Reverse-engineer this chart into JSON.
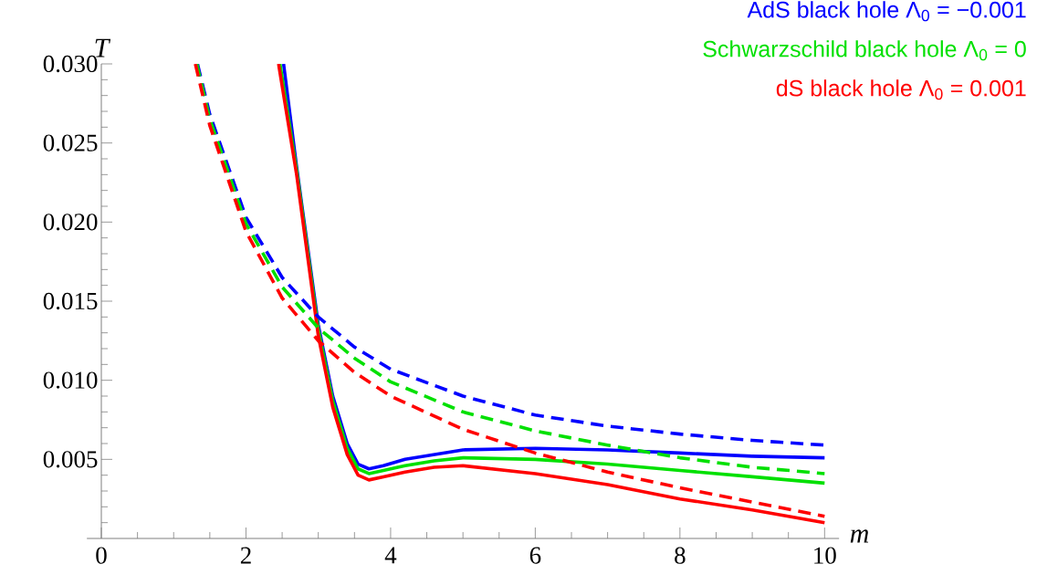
{
  "chart_data": {
    "type": "line",
    "xlabel": "m",
    "ylabel": "T",
    "xlim": [
      -0.2,
      10.2
    ],
    "ylim": [
      0,
      0.03
    ],
    "xticks": [
      0,
      {
        "value": 0.5,
        "label": null
      },
      {
        "value": 1,
        "label": null
      },
      {
        "value": 1.5,
        "label": null
      },
      2,
      {
        "value": 2.5,
        "label": null
      },
      {
        "value": 3,
        "label": null
      },
      {
        "value": 3.5,
        "label": null
      },
      4,
      {
        "value": 4.5,
        "label": null
      },
      {
        "value": 5,
        "label": null
      },
      {
        "value": 5.5,
        "label": null
      },
      6,
      {
        "value": 6.5,
        "label": null
      },
      {
        "value": 7,
        "label": null
      },
      {
        "value": 7.5,
        "label": null
      },
      8,
      {
        "value": 8.5,
        "label": null
      },
      {
        "value": 9,
        "label": null
      },
      {
        "value": 9.5,
        "label": null
      },
      10
    ],
    "yticks": [
      {
        "value": 0.001,
        "label": null
      },
      {
        "value": 0.002,
        "label": null
      },
      {
        "value": 0.003,
        "label": null
      },
      {
        "value": 0.004,
        "label": null
      },
      0.005,
      {
        "value": 0.006,
        "label": null
      },
      {
        "value": 0.007,
        "label": null
      },
      {
        "value": 0.008,
        "label": null
      },
      {
        "value": 0.009,
        "label": null
      },
      {
        "value": 0.01,
        "label": "0.010"
      },
      {
        "value": 0.011,
        "label": null
      },
      {
        "value": 0.012,
        "label": null
      },
      {
        "value": 0.013,
        "label": null
      },
      {
        "value": 0.014,
        "label": null
      },
      0.015,
      {
        "value": 0.016,
        "label": null
      },
      {
        "value": 0.017,
        "label": null
      },
      {
        "value": 0.018,
        "label": null
      },
      {
        "value": 0.019,
        "label": null
      },
      {
        "value": 0.02,
        "label": "0.020"
      },
      {
        "value": 0.021,
        "label": null
      },
      {
        "value": 0.022,
        "label": null
      },
      {
        "value": 0.023,
        "label": null
      },
      {
        "value": 0.024,
        "label": null
      },
      0.025,
      {
        "value": 0.026,
        "label": null
      },
      {
        "value": 0.027,
        "label": null
      },
      {
        "value": 0.028,
        "label": null
      },
      {
        "value": 0.029,
        "label": null
      },
      {
        "value": 0.03,
        "label": "0.030"
      }
    ],
    "legend": "top right",
    "grid": false,
    "series": [
      {
        "name": "AdS black hole Λ$_{0}$ = −0.001",
        "color": "#0000ff",
        "line_style": "solid",
        "x": [
          2.52,
          2.7,
          3.0,
          3.2,
          3.4,
          3.55,
          3.7,
          3.9,
          4.2,
          4.6,
          5,
          6,
          7,
          8,
          9,
          10
        ],
        "values": [
          0.03,
          0.0235,
          0.0135,
          0.009,
          0.006,
          0.0047,
          0.0044,
          0.0046,
          0.005,
          0.0053,
          0.0056,
          0.0057,
          0.0056,
          0.0054,
          0.0052,
          0.0051
        ]
      },
      {
        "name": "Schwarzschild black hole Λ$_{0}$ = 0",
        "color": "#00e000",
        "line_style": "solid",
        "x": [
          2.47,
          2.7,
          3.0,
          3.2,
          3.4,
          3.55,
          3.7,
          3.9,
          4.2,
          4.6,
          5,
          6,
          7,
          8,
          9,
          10
        ],
        "values": [
          0.03,
          0.0233,
          0.0132,
          0.0087,
          0.0057,
          0.0044,
          0.0041,
          0.0043,
          0.0046,
          0.0049,
          0.0051,
          0.005,
          0.0047,
          0.0043,
          0.0039,
          0.0035
        ]
      },
      {
        "name": "dS black hole Λ$_{0}$ = 0.001",
        "color": "#ff0000",
        "line_style": "solid",
        "x": [
          2.45,
          2.7,
          3.0,
          3.2,
          3.4,
          3.55,
          3.7,
          3.9,
          4.2,
          4.6,
          5,
          6,
          7,
          8,
          9,
          10
        ],
        "values": [
          0.03,
          0.023,
          0.0128,
          0.0083,
          0.0053,
          0.004,
          0.0037,
          0.0039,
          0.0042,
          0.0045,
          0.0046,
          0.0041,
          0.0034,
          0.0025,
          0.0018,
          0.001
        ]
      },
      {
        "color": "#0000ff",
        "line_style": "dashed",
        "x": [
          1.33,
          1.5,
          2,
          2.5,
          3,
          3.5,
          4,
          5,
          6,
          7,
          8,
          9,
          10
        ],
        "values": [
          0.03,
          0.0268,
          0.0203,
          0.0165,
          0.014,
          0.0121,
          0.0107,
          0.009,
          0.0078,
          0.0071,
          0.0066,
          0.0062,
          0.0059
        ]
      },
      {
        "color": "#00e000",
        "line_style": "dashed",
        "x": [
          1.32,
          1.5,
          2,
          2.5,
          3,
          3.5,
          4,
          5,
          6,
          7,
          8,
          9,
          10
        ],
        "values": [
          0.03,
          0.0265,
          0.0199,
          0.0159,
          0.0133,
          0.0114,
          0.0099,
          0.008,
          0.0068,
          0.0059,
          0.0051,
          0.0045,
          0.0041
        ]
      },
      {
        "color": "#ff0000",
        "line_style": "dashed",
        "x": [
          1.3,
          1.5,
          2,
          2.5,
          3,
          3.5,
          4,
          5,
          6,
          7,
          8,
          9,
          10
        ],
        "values": [
          0.03,
          0.0261,
          0.0194,
          0.0152,
          0.0125,
          0.0105,
          0.009,
          0.0069,
          0.0054,
          0.0042,
          0.0032,
          0.0023,
          0.0014
        ]
      }
    ]
  }
}
